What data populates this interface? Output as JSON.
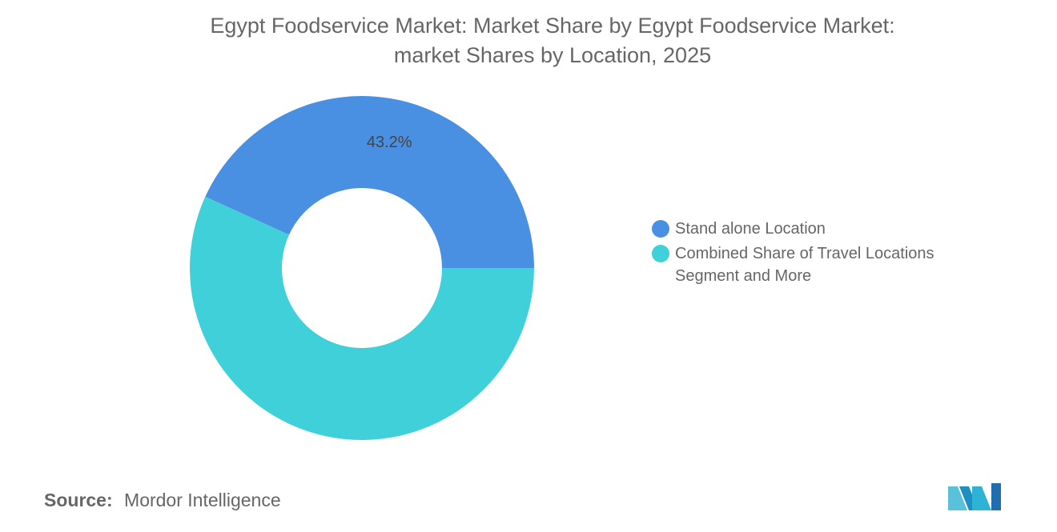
{
  "title": {
    "line1": "Egypt Foodservice Market: Market Share by Egypt Foodservice Market:",
    "line2": "market Shares by Location, 2025"
  },
  "source": {
    "label": "Source:",
    "value": "Mordor Intelligence"
  },
  "colors": {
    "series_1": "#4a90e2",
    "series_2": "#3fd0d9",
    "text": "#666666"
  },
  "chart_data": {
    "type": "pie",
    "title": "Egypt Foodservice Market: Market Share by Egypt Foodservice Market: market Shares by Location, 2025",
    "donut": true,
    "slices": [
      {
        "label": "Stand alone Location",
        "value": 43.2,
        "data_label": "43.2%",
        "color": "#4a90e2"
      },
      {
        "label": "Combined Share of Travel Locations Segment and More",
        "value": 56.8,
        "data_label": "",
        "color": "#3fd0d9"
      }
    ],
    "legend_position": "right"
  }
}
